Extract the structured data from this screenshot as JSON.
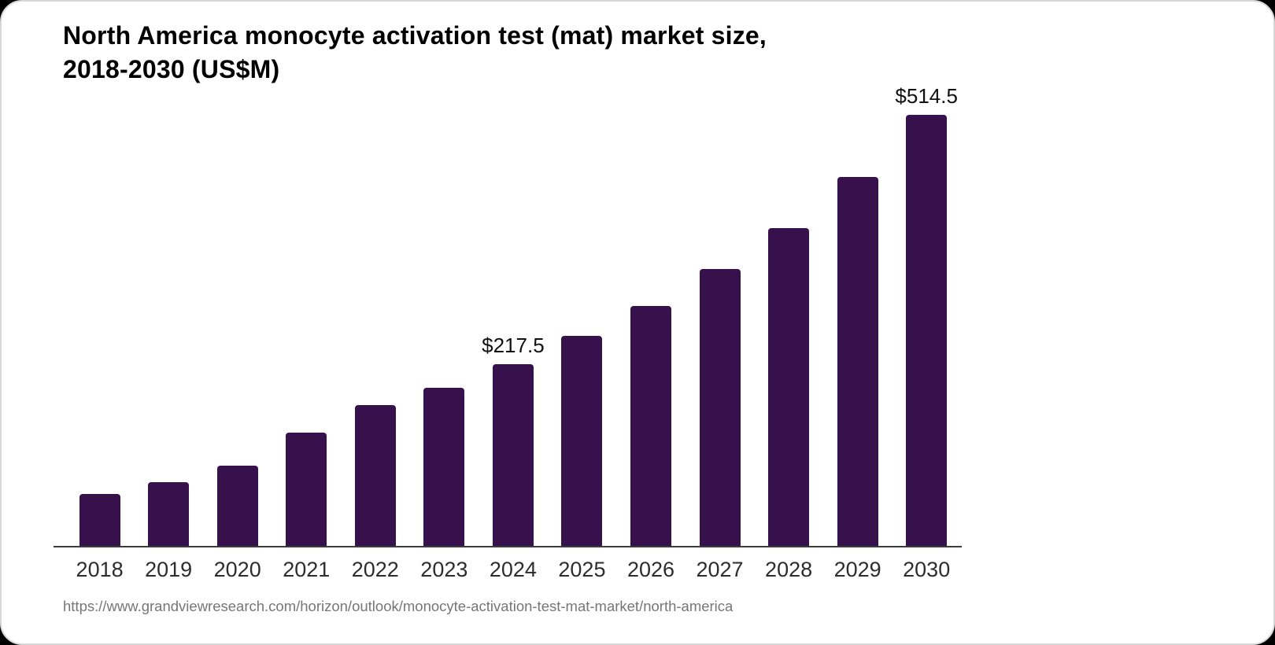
{
  "header": {
    "title_line1": "North America monocyte activation test (mat) market size,",
    "title_line2": "2018-2030 (US$M)"
  },
  "source": {
    "url": "https://www.grandviewresearch.com/horizon/outlook/monocyte-activation-test-mat-market/north-america"
  },
  "colors": {
    "bar": "#36114B",
    "axis": "#3b3b3b",
    "tick_label": "#2d2d2d",
    "value_label": "#111111",
    "source_text": "#767676",
    "card_background": "#ffffff",
    "card_border": "#d7d7d7",
    "page_background": "#000000"
  },
  "chart_data": {
    "type": "bar",
    "title": "North America monocyte activation test (mat) market size, 2018-2030 (US$M)",
    "xlabel": "",
    "ylabel": "",
    "categories": [
      "2018",
      "2019",
      "2020",
      "2021",
      "2022",
      "2023",
      "2024",
      "2025",
      "2026",
      "2027",
      "2028",
      "2029",
      "2030"
    ],
    "values": [
      63.1,
      77.2,
      96.5,
      135.6,
      168.7,
      189.7,
      217.5,
      251.1,
      287.0,
      331.0,
      380.0,
      440.2,
      514.5
    ],
    "value_labels": [
      {
        "category": "2024",
        "text": "$217.5"
      },
      {
        "category": "2030",
        "text": "$514.5"
      }
    ],
    "ylim": [
      0,
      540
    ],
    "grid": false,
    "legend": false,
    "bar_color": "#36114B"
  }
}
